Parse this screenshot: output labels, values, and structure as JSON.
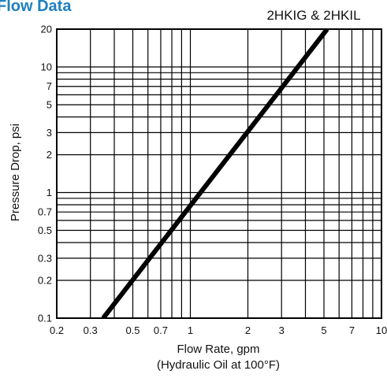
{
  "header": {
    "section_title": "Flow Data"
  },
  "chart_data": {
    "type": "line",
    "title": "2HKIG & 2HKIL",
    "xlabel": "Flow Rate, gpm",
    "xlabel_note": "(Hydraulic Oil at 100°F)",
    "ylabel": "Pressure Drop, psi",
    "xscale": "log",
    "yscale": "log",
    "xlim": [
      0.2,
      10
    ],
    "ylim": [
      0.1,
      20
    ],
    "grid": true,
    "x_ticks": [
      0.2,
      0.3,
      0.5,
      0.7,
      1,
      2,
      3,
      5,
      7,
      10
    ],
    "x_tick_labels": [
      "0.2",
      "0.3",
      "0.5",
      "0.7",
      "1",
      "2",
      "3",
      "5",
      "7",
      "10"
    ],
    "y_ticks": [
      0.1,
      0.2,
      0.3,
      0.5,
      0.7,
      1,
      2,
      3,
      5,
      7,
      10,
      20
    ],
    "y_tick_labels": [
      "0.1",
      "0.2",
      "0.3",
      "0.5",
      "0.7",
      "1",
      "2",
      "3",
      "5",
      "7",
      "10",
      "20"
    ],
    "x_minor_gridlines": [
      0.4,
      0.6,
      0.8,
      0.9,
      4,
      6,
      8,
      9
    ],
    "y_minor_gridlines": [
      0.4,
      0.6,
      0.8,
      0.9,
      4,
      6,
      8,
      9
    ],
    "series": [
      {
        "points": [
          [
            0.35,
            0.1
          ],
          [
            5.2,
            20
          ]
        ],
        "color": "#000000"
      }
    ],
    "colors": {
      "header": "#1f7fc0",
      "grid": "#000000",
      "line": "#000000"
    }
  }
}
